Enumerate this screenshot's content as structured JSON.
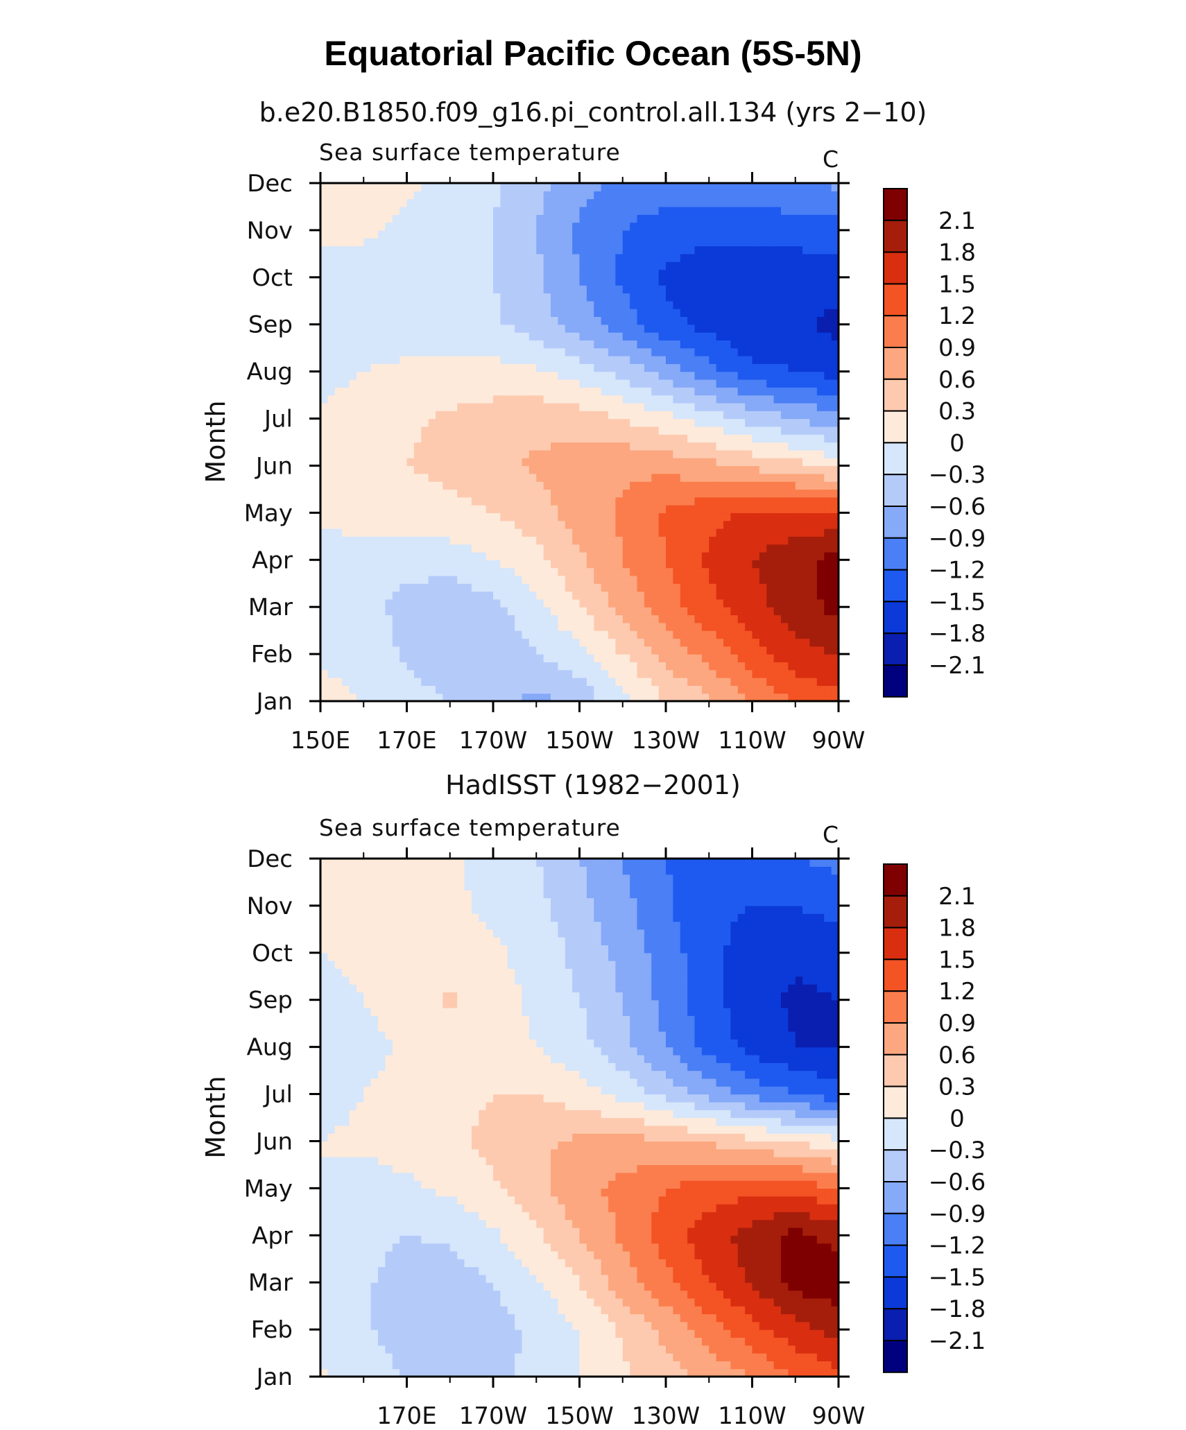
{
  "page": {
    "title": "Equatorial Pacific Ocean (5S-5N)"
  },
  "panels": [
    {
      "run_title": "b.e20.B1850.f09_g16.pi_control.all.134 (yrs 2−10)",
      "left_label": "Sea surface temperature",
      "units_label": "C",
      "ylabel": "Month"
    },
    {
      "run_title": "HadISST (1982−2001)",
      "left_label": "Sea surface temperature",
      "units_label": "C",
      "ylabel": "Month"
    }
  ],
  "chart_data": [
    {
      "type": "heatmap",
      "title": "b.e20.B1850.f09_g16.pi_control.all.134 (yrs 2−10)",
      "variable": "Sea surface temperature",
      "units": "C",
      "ylabel": "Month",
      "xlim": [
        150,
        270
      ],
      "x_ticks": [
        150,
        170,
        190,
        210,
        230,
        250,
        270
      ],
      "x_tick_labels": [
        "150E",
        "170E",
        "170W",
        "150W",
        "130W",
        "110W",
        "90W"
      ],
      "y_tick_labels": [
        "Jan",
        "Feb",
        "Mar",
        "Apr",
        "May",
        "Jun",
        "Jul",
        "Aug",
        "Sep",
        "Oct",
        "Nov",
        "Dec"
      ],
      "levels": [
        -2.1,
        -1.8,
        -1.5,
        -1.2,
        -0.9,
        -0.6,
        -0.3,
        0,
        0.3,
        0.6,
        0.9,
        1.2,
        1.5,
        1.8,
        2.1
      ],
      "colorbar_labels": [
        "2.1",
        "1.8",
        "1.5",
        "1.2",
        "0.9",
        "0.6",
        "0.3",
        "0",
        "−0.3",
        "−0.6",
        "−0.9",
        "−1.2",
        "−1.5",
        "−1.8",
        "−2.1"
      ],
      "colors": [
        "#00007f",
        "#0a1eb0",
        "#0b3ad9",
        "#1e5af0",
        "#4a7ff5",
        "#86a9f8",
        "#b4cbfa",
        "#d6e6fb",
        "#fdeadb",
        "#fdcab0",
        "#fca77f",
        "#fb7d4d",
        "#f45324",
        "#d92e10",
        "#a51e0b",
        "#7f0000"
      ],
      "field": {
        "x": [
          150,
          160,
          170,
          180,
          190,
          200,
          210,
          220,
          230,
          240,
          250,
          260,
          270
        ],
        "months": [
          "Jan",
          "Feb",
          "Mar",
          "Apr",
          "May",
          "Jun",
          "Jul",
          "Aug",
          "Sep",
          "Oct",
          "Nov",
          "Dec"
        ],
        "values": [
          [
            0.1,
            0.0,
            -0.15,
            -0.3,
            -0.45,
            -0.7,
            -0.5,
            -0.1,
            0.3,
            0.55,
            0.9,
            1.2,
            1.4
          ],
          [
            -0.05,
            -0.1,
            -0.35,
            -0.55,
            -0.5,
            -0.3,
            -0.1,
            0.3,
            0.7,
            1.0,
            1.4,
            1.7,
            1.8
          ],
          [
            -0.15,
            -0.2,
            -0.4,
            -0.55,
            -0.4,
            -0.1,
            0.3,
            0.7,
            1.05,
            1.4,
            1.7,
            1.95,
            2.2
          ],
          [
            -0.1,
            -0.1,
            -0.2,
            -0.15,
            0.0,
            0.2,
            0.55,
            0.9,
            1.2,
            1.55,
            1.8,
            2.0,
            2.2
          ],
          [
            0.05,
            0.1,
            0.15,
            0.2,
            0.3,
            0.45,
            0.75,
            0.95,
            1.25,
            1.4,
            1.55,
            1.6,
            1.55
          ],
          [
            0.1,
            0.2,
            0.3,
            0.4,
            0.5,
            0.65,
            0.75,
            0.85,
            0.8,
            0.7,
            0.55,
            0.4,
            0.2
          ],
          [
            0.05,
            0.15,
            0.25,
            0.35,
            0.45,
            0.5,
            0.45,
            0.3,
            0.1,
            -0.15,
            -0.4,
            -0.6,
            -0.8
          ],
          [
            -0.1,
            0.0,
            0.05,
            0.1,
            0.1,
            0.05,
            -0.15,
            -0.4,
            -0.75,
            -1.1,
            -1.4,
            -1.5,
            -1.6
          ],
          [
            -0.15,
            -0.15,
            -0.1,
            -0.15,
            -0.25,
            -0.45,
            -0.75,
            -1.05,
            -1.4,
            -1.6,
            -1.8,
            -1.75,
            -1.9
          ],
          [
            -0.1,
            -0.15,
            -0.15,
            -0.2,
            -0.3,
            -0.55,
            -0.9,
            -1.25,
            -1.55,
            -1.7,
            -1.7,
            -1.65,
            -1.65
          ],
          [
            0.05,
            0.05,
            -0.05,
            -0.15,
            -0.3,
            -0.6,
            -0.95,
            -1.2,
            -1.35,
            -1.4,
            -1.4,
            -1.4,
            -1.35
          ],
          [
            0.1,
            0.1,
            0.05,
            -0.1,
            -0.25,
            -0.5,
            -0.8,
            -1.0,
            -1.05,
            -1.0,
            -0.95,
            -0.9,
            -0.85
          ]
        ]
      }
    },
    {
      "type": "heatmap",
      "title": "HadISST (1982−2001)",
      "variable": "Sea surface temperature",
      "units": "C",
      "ylabel": "Month",
      "xlim": [
        150,
        270
      ],
      "x_ticks": [
        170,
        190,
        210,
        230,
        250,
        270
      ],
      "x_tick_labels": [
        "170E",
        "170W",
        "150W",
        "130W",
        "110W",
        "90W"
      ],
      "y_tick_labels": [
        "Jan",
        "Feb",
        "Mar",
        "Apr",
        "May",
        "Jun",
        "Jul",
        "Aug",
        "Sep",
        "Oct",
        "Nov",
        "Dec"
      ],
      "levels": [
        -2.1,
        -1.8,
        -1.5,
        -1.2,
        -0.9,
        -0.6,
        -0.3,
        0,
        0.3,
        0.6,
        0.9,
        1.2,
        1.5,
        1.8,
        2.1
      ],
      "colorbar_labels": [
        "2.1",
        "1.8",
        "1.5",
        "1.2",
        "0.9",
        "0.6",
        "0.3",
        "0",
        "−0.3",
        "−0.6",
        "−0.9",
        "−1.2",
        "−1.5",
        "−1.8",
        "−2.1"
      ],
      "colors": [
        "#00007f",
        "#0a1eb0",
        "#0b3ad9",
        "#1e5af0",
        "#4a7ff5",
        "#86a9f8",
        "#b4cbfa",
        "#d6e6fb",
        "#fdeadb",
        "#fdcab0",
        "#fca77f",
        "#fb7d4d",
        "#f45324",
        "#d92e10",
        "#a51e0b",
        "#7f0000"
      ],
      "field": {
        "x": [
          150,
          160,
          170,
          180,
          190,
          200,
          210,
          220,
          230,
          240,
          250,
          260,
          270
        ],
        "months": [
          "Jan",
          "Feb",
          "Mar",
          "Apr",
          "May",
          "Jun",
          "Jul",
          "Aug",
          "Sep",
          "Oct",
          "Nov",
          "Dec"
        ],
        "values": [
          [
            0.05,
            -0.1,
            -0.35,
            -0.45,
            -0.4,
            -0.2,
            0.0,
            0.25,
            0.45,
            0.7,
            0.9,
            1.2,
            1.4
          ],
          [
            -0.15,
            -0.25,
            -0.45,
            -0.5,
            -0.4,
            -0.25,
            0.0,
            0.35,
            0.7,
            1.05,
            1.4,
            1.7,
            1.9
          ],
          [
            -0.2,
            -0.25,
            -0.45,
            -0.45,
            -0.3,
            -0.05,
            0.3,
            0.75,
            1.1,
            1.5,
            1.85,
            2.2,
            2.3
          ],
          [
            -0.1,
            -0.2,
            -0.3,
            -0.25,
            -0.05,
            0.25,
            0.6,
            0.95,
            1.35,
            1.65,
            1.95,
            2.2,
            2.0
          ],
          [
            0.0,
            -0.1,
            -0.05,
            0.05,
            0.25,
            0.5,
            0.8,
            1.0,
            1.2,
            1.35,
            1.4,
            1.4,
            1.2
          ],
          [
            0.0,
            0.05,
            0.1,
            0.2,
            0.4,
            0.55,
            0.65,
            0.7,
            0.65,
            0.55,
            0.4,
            0.25,
            0.1
          ],
          [
            -0.1,
            0.0,
            0.1,
            0.2,
            0.3,
            0.3,
            0.15,
            -0.1,
            -0.4,
            -0.7,
            -1.0,
            -1.2,
            -1.4
          ],
          [
            -0.2,
            -0.1,
            0.05,
            0.15,
            0.1,
            0.0,
            -0.2,
            -0.5,
            -0.9,
            -1.3,
            -1.6,
            -1.8,
            -1.8
          ],
          [
            -0.15,
            0.0,
            0.15,
            0.35,
            0.1,
            -0.05,
            -0.3,
            -0.6,
            -1.0,
            -1.4,
            -1.7,
            -1.85,
            -1.8
          ],
          [
            0.0,
            0.1,
            0.15,
            0.1,
            0.05,
            -0.1,
            -0.4,
            -0.7,
            -1.05,
            -1.4,
            -1.65,
            -1.75,
            -1.7
          ],
          [
            0.05,
            0.1,
            0.1,
            0.05,
            -0.05,
            -0.2,
            -0.5,
            -0.8,
            -1.15,
            -1.45,
            -1.5,
            -1.5,
            -1.4
          ],
          [
            0.1,
            0.1,
            0.1,
            0.05,
            -0.1,
            -0.3,
            -0.6,
            -0.9,
            -1.2,
            -1.3,
            -1.3,
            -1.2,
            -1.1
          ]
        ]
      }
    }
  ]
}
